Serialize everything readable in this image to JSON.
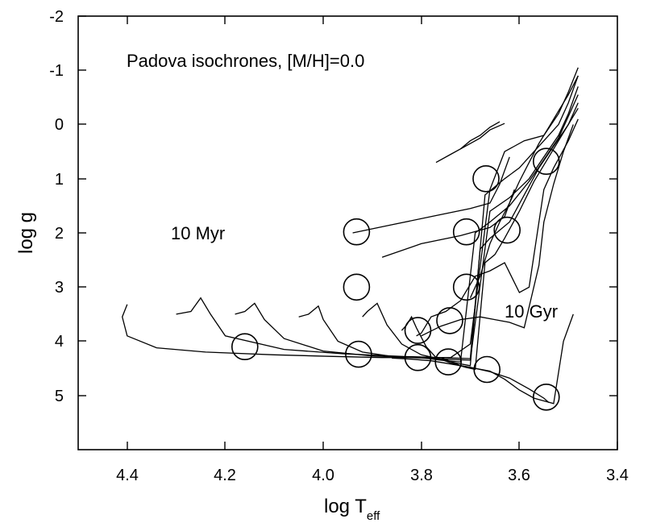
{
  "chart_data": {
    "type": "line",
    "title": "",
    "xlabel": "log T",
    "xlabel_sub": "eff",
    "ylabel": "log g",
    "xlim": [
      4.5,
      3.4
    ],
    "ylim": [
      6.0,
      -2.0
    ],
    "x_ticks": [
      4.4,
      4.2,
      4.0,
      3.8,
      3.6,
      3.4
    ],
    "x_tick_labels": [
      "4.4",
      "4.2",
      "4.0",
      "3.8",
      "3.6",
      "3.4"
    ],
    "y_ticks": [
      -2,
      -1,
      0,
      1,
      2,
      3,
      4,
      5
    ],
    "y_tick_labels": [
      "-2",
      "-1",
      "0",
      "1",
      "2",
      "3",
      "4",
      "5"
    ],
    "grid": false,
    "annotations": [
      {
        "text": "Padova isochrones, [M/H]=0.0",
        "x": 4.34,
        "y": -1.2
      },
      {
        "text": "10 Myr",
        "x": 4.28,
        "y": 2.0
      },
      {
        "text": "10 Gyr",
        "x": 3.63,
        "y": 3.6
      }
    ],
    "series": [
      {
        "x": [
          4.4,
          4.41,
          4.4,
          4.34,
          4.24,
          4.1,
          3.98,
          3.88,
          3.8,
          3.74,
          3.7,
          3.66,
          3.63,
          3.59,
          3.55,
          3.52,
          3.5,
          3.48
        ],
        "y": [
          3.32,
          3.55,
          3.9,
          4.12,
          4.2,
          4.25,
          4.28,
          4.3,
          4.3,
          4.3,
          4.05,
          1.2,
          0.5,
          0.3,
          0.2,
          -0.2,
          -0.6,
          -1.05
        ]
      },
      {
        "x": [
          4.3,
          4.27,
          4.25,
          4.23,
          4.2,
          4.08,
          3.96,
          3.84,
          3.76,
          3.7,
          3.67,
          3.63,
          3.6,
          3.57,
          3.55,
          3.52,
          3.5,
          3.48
        ],
        "y": [
          3.5,
          3.45,
          3.2,
          3.5,
          3.9,
          4.15,
          4.23,
          4.28,
          4.3,
          4.32,
          1.3,
          1.0,
          0.8,
          0.5,
          0.3,
          0.0,
          -0.4,
          -0.9
        ]
      },
      {
        "x": [
          4.18,
          4.16,
          4.14,
          4.12,
          4.08,
          4.0,
          3.9,
          3.82,
          3.75,
          3.7,
          3.66,
          3.62,
          3.58,
          3.55,
          3.52,
          3.5,
          3.48
        ],
        "y": [
          3.5,
          3.45,
          3.3,
          3.6,
          3.95,
          4.18,
          4.27,
          4.3,
          4.33,
          4.35,
          1.6,
          1.35,
          1.0,
          0.6,
          0.2,
          -0.2,
          -0.7
        ]
      },
      {
        "x": [
          4.05,
          4.03,
          4.01,
          4.0,
          3.97,
          3.92,
          3.86,
          3.8,
          3.76,
          3.72,
          3.69,
          3.66,
          3.62,
          3.58,
          3.55,
          3.52,
          3.5,
          3.48
        ],
        "y": [
          3.55,
          3.5,
          3.35,
          3.6,
          4.0,
          4.2,
          4.28,
          4.3,
          4.35,
          4.38,
          2.0,
          1.8,
          1.5,
          1.05,
          0.65,
          0.25,
          -0.15,
          -0.55
        ]
      },
      {
        "x": [
          3.92,
          3.91,
          3.89,
          3.87,
          3.84,
          3.8,
          3.76,
          3.73,
          3.7,
          3.68,
          3.66,
          3.62,
          3.59,
          3.56,
          3.53,
          3.5,
          3.48
        ],
        "y": [
          3.55,
          3.45,
          3.3,
          3.7,
          4.05,
          4.25,
          4.33,
          4.4,
          4.45,
          2.3,
          2.1,
          1.8,
          1.3,
          0.8,
          0.4,
          0.0,
          -0.4
        ]
      },
      {
        "x": [
          3.84,
          3.83,
          3.82,
          3.81,
          3.79,
          3.77,
          3.74,
          3.71,
          3.69,
          3.67,
          3.65,
          3.63,
          3.6,
          3.57,
          3.54,
          3.51,
          3.48
        ],
        "y": [
          3.8,
          3.7,
          3.55,
          3.75,
          4.1,
          4.3,
          4.4,
          4.48,
          4.52,
          2.55,
          2.4,
          2.1,
          1.6,
          1.05,
          0.6,
          0.15,
          -0.3
        ]
      },
      {
        "x": [
          3.81,
          3.8,
          3.79,
          3.78,
          3.75,
          3.72,
          3.69,
          3.66,
          3.63,
          3.6,
          3.58,
          3.56,
          3.55,
          3.53,
          3.5,
          3.48
        ],
        "y": [
          3.9,
          3.85,
          3.7,
          3.55,
          3.45,
          3.25,
          2.8,
          2.7,
          2.55,
          3.1,
          3.0,
          1.8,
          1.2,
          0.8,
          0.3,
          -0.1
        ]
      },
      {
        "x": [
          3.8,
          3.76,
          3.72,
          3.68,
          3.65,
          3.62,
          3.59,
          3.56,
          3.55,
          3.53,
          3.51,
          3.49
        ],
        "y": [
          3.9,
          3.72,
          3.6,
          3.55,
          3.6,
          3.65,
          3.75,
          2.6,
          1.8,
          1.1,
          0.5,
          0.0
        ]
      },
      {
        "x": [
          3.76,
          3.72,
          3.69,
          3.66,
          3.63,
          3.6,
          3.57,
          3.55,
          3.53,
          3.51,
          3.49
        ],
        "y": [
          4.3,
          4.45,
          4.5,
          4.55,
          4.7,
          4.9,
          5.05,
          5.1,
          5.15,
          4.0,
          3.5
        ]
      },
      {
        "x": [
          3.86,
          3.82,
          3.78,
          3.74,
          3.7,
          3.66,
          3.62,
          3.58,
          3.55,
          3.54
        ],
        "y": [
          4.31,
          4.33,
          4.36,
          4.42,
          4.48,
          4.56,
          4.68,
          4.88,
          5.05,
          5.13
        ]
      },
      {
        "x": [
          3.77,
          3.74,
          3.71,
          3.68,
          3.66,
          3.63
        ],
        "y": [
          0.7,
          0.55,
          0.4,
          0.25,
          0.1,
          -0.02
        ]
      },
      {
        "x": [
          3.72,
          3.7,
          3.68,
          3.66,
          3.64
        ],
        "y": [
          0.45,
          0.3,
          0.2,
          0.05,
          -0.05
        ]
      },
      {
        "x": [
          3.94,
          3.86,
          3.78,
          3.7,
          3.66,
          3.64,
          3.62
        ],
        "y": [
          2.0,
          1.85,
          1.7,
          1.55,
          1.45,
          1.1,
          0.6
        ]
      },
      {
        "x": [
          3.88,
          3.8,
          3.72,
          3.66,
          3.63,
          3.61
        ],
        "y": [
          2.45,
          2.2,
          2.05,
          1.9,
          1.7,
          1.2
        ]
      },
      {
        "x": [
          3.7,
          3.68,
          3.66,
          3.64,
          3.62,
          3.6,
          3.58,
          3.56,
          3.54,
          3.52,
          3.5,
          3.48
        ],
        "y": [
          3.2,
          2.8,
          2.2,
          1.8,
          1.45,
          1.05,
          0.7,
          0.35,
          0.05,
          -0.25,
          -0.55,
          -0.9
        ]
      }
    ],
    "markers": [
      {
        "x": 3.545,
        "y": 0.68
      },
      {
        "x": 3.668,
        "y": 1.0
      },
      {
        "x": 3.708,
        "y": 1.98
      },
      {
        "x": 3.625,
        "y": 1.95
      },
      {
        "x": 3.932,
        "y": 1.98
      },
      {
        "x": 3.932,
        "y": 3.0
      },
      {
        "x": 3.708,
        "y": 3.0
      },
      {
        "x": 3.742,
        "y": 3.62
      },
      {
        "x": 3.807,
        "y": 3.8
      },
      {
        "x": 4.16,
        "y": 4.1
      },
      {
        "x": 3.928,
        "y": 4.24
      },
      {
        "x": 3.807,
        "y": 4.3
      },
      {
        "x": 3.745,
        "y": 4.38
      },
      {
        "x": 3.666,
        "y": 4.52
      },
      {
        "x": 3.545,
        "y": 5.03
      }
    ]
  }
}
